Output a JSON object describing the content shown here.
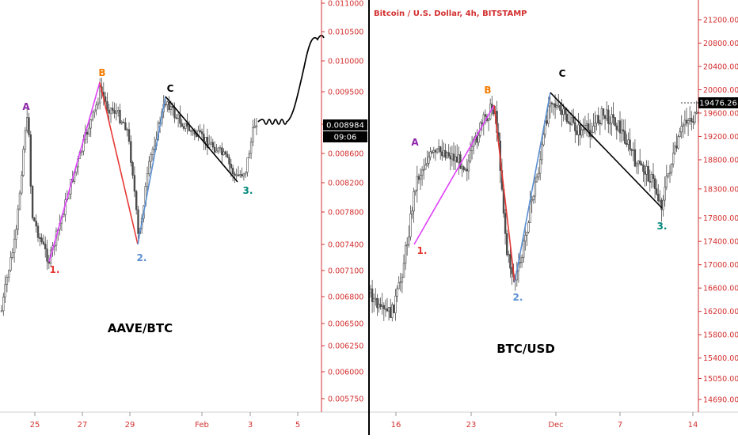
{
  "theme": {
    "candle_color": "#4a4a4a",
    "axis_text_color": "#d32f2f",
    "axis_line_color": "#d32f2f",
    "divider_color": "#000000"
  },
  "chart_data": [
    {
      "type": "candlestick",
      "name": "AAVE/BTC",
      "overlay_label": "AAVE/BTC",
      "x_ticks": [
        "25",
        "27",
        "29",
        "Feb",
        "3",
        "5"
      ],
      "y_ticks": [
        0.011,
        0.0105,
        0.01,
        0.0095,
        0.009,
        0.0086,
        0.0082,
        0.0078,
        0.0074,
        0.0071,
        0.0068,
        0.0065,
        0.00625,
        0.006,
        0.00575
      ],
      "y_tick_labels": [
        "0.011000",
        "0.010500",
        "0.010000",
        "0.009500",
        "0.009000",
        "0.008600",
        "0.008200",
        "0.007800",
        "0.007400",
        "0.007100",
        "0.006800",
        "0.006500",
        "0.006250",
        "0.006000",
        "0.005750"
      ],
      "y_scale": "log",
      "price_label": "0.008984",
      "countdown_label": "09:06",
      "price_markers": [
        0.0081,
        0.00848,
        0.00885,
        0.00917,
        0.00946,
        0.00958,
        0.0093,
        0.00885
      ],
      "wave_lines": [
        {
          "from": "1.",
          "to": "B",
          "color": "#e040fb"
        },
        {
          "from": "B",
          "to": "2.",
          "color": "#e53935"
        },
        {
          "from": "2.",
          "to": "C",
          "color": "#5b8fd1"
        },
        {
          "from": "C",
          "to": "3.",
          "color": "#000000"
        }
      ],
      "wave_labels": [
        {
          "text": "A",
          "color": "#8e24aa"
        },
        {
          "text": "B",
          "color": "#f57c00"
        },
        {
          "text": "C",
          "color": "#000000"
        },
        {
          "text": "1.",
          "color": "#e53935"
        },
        {
          "text": "2.",
          "color": "#5b8fd1"
        },
        {
          "text": "3.",
          "color": "#00897b"
        }
      ],
      "projection": "wavy line upward to ~0.0104"
    },
    {
      "type": "candlestick",
      "name": "Bitcoin / U.S. Dollar, 4h, BITSTAMP",
      "header": "Bitcoin / U.S. Dollar, 4h, BITSTAMP",
      "overlay_label": "BTC/USD",
      "x_ticks": [
        "16",
        "23",
        "Dec",
        "7",
        "14"
      ],
      "y_ticks": [
        21200,
        20800,
        20400,
        20000,
        19600,
        19200,
        18800,
        18300,
        17800,
        17400,
        17000,
        16600,
        16200,
        15800,
        15400,
        15050,
        14690
      ],
      "y_tick_labels": [
        "21200.00",
        "20800.00",
        "20400.00",
        "20000.00",
        "19600.00",
        "19200.00",
        "18800.00",
        "18300.00",
        "17800.00",
        "17400.00",
        "17000.00",
        "16600.00",
        "16200.00",
        "15800.00",
        "15400.00",
        "15050.00",
        "14690.00"
      ],
      "price_label": "19476.26",
      "wave_labels": [
        {
          "text": "A",
          "color": "#8e24aa"
        },
        {
          "text": "B",
          "color": "#f57c00"
        },
        {
          "text": "C",
          "color": "#000000"
        },
        {
          "text": "1.",
          "color": "#e53935"
        },
        {
          "text": "2.",
          "color": "#5b8fd1"
        },
        {
          "text": "3.",
          "color": "#00897b"
        }
      ],
      "wave_lines": [
        {
          "from": "1.",
          "to": "B",
          "color": "#e040fb"
        },
        {
          "from": "B",
          "to": "2.",
          "color": "#e53935"
        },
        {
          "from": "2.",
          "to": "C",
          "color": "#5b8fd1"
        },
        {
          "from": "C",
          "to": "3.",
          "color": "#000000"
        }
      ]
    }
  ]
}
